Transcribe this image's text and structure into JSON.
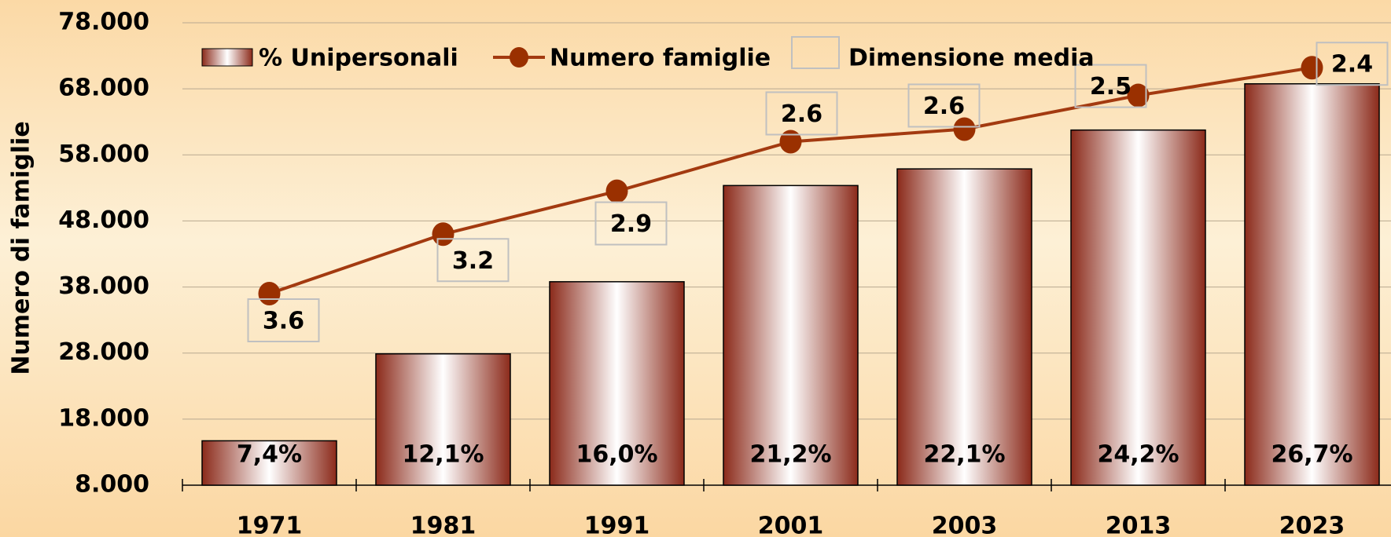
{
  "chart_data": {
    "type": "bar",
    "ylabel": "Numero di famiglie",
    "categories": [
      "1971",
      "1981",
      "1991",
      "2001",
      "2003",
      "2013",
      "2023"
    ],
    "series": [
      {
        "name": "% Unipersonali",
        "type": "bar",
        "axis": "y2",
        "color": "#8b2a1a",
        "values": [
          7.4,
          12.1,
          16.0,
          21.2,
          22.1,
          24.2,
          26.7
        ],
        "value_labels": [
          "7,4%",
          "12,1%",
          "16,0%",
          "21,2%",
          "22,1%",
          "24,2%",
          "26,7%"
        ]
      },
      {
        "name": "Numero famiglie",
        "type": "line",
        "color": "#a33a10",
        "values": [
          37000,
          46000,
          52500,
          60000,
          61900,
          67000,
          71200
        ]
      },
      {
        "name": "Dimensione media",
        "type": "label",
        "color": "#c0c0c0",
        "values": [
          3.6,
          3.2,
          2.9,
          2.6,
          2.6,
          2.5,
          2.4
        ]
      }
    ],
    "ylim": [
      8000,
      78000
    ],
    "yticks": [
      {
        "value": 8000,
        "label": "8.000"
      },
      {
        "value": 18000,
        "label": "18.000"
      },
      {
        "value": 28000,
        "label": "28.000"
      },
      {
        "value": 38000,
        "label": "38.000"
      },
      {
        "value": 48000,
        "label": "48.000"
      },
      {
        "value": 58000,
        "label": "58.000"
      },
      {
        "value": 68000,
        "label": "68.000"
      },
      {
        "value": 78000,
        "label": "78.000"
      }
    ],
    "y2lim": [
      5,
      30
    ],
    "grid": true,
    "legend": "top"
  }
}
